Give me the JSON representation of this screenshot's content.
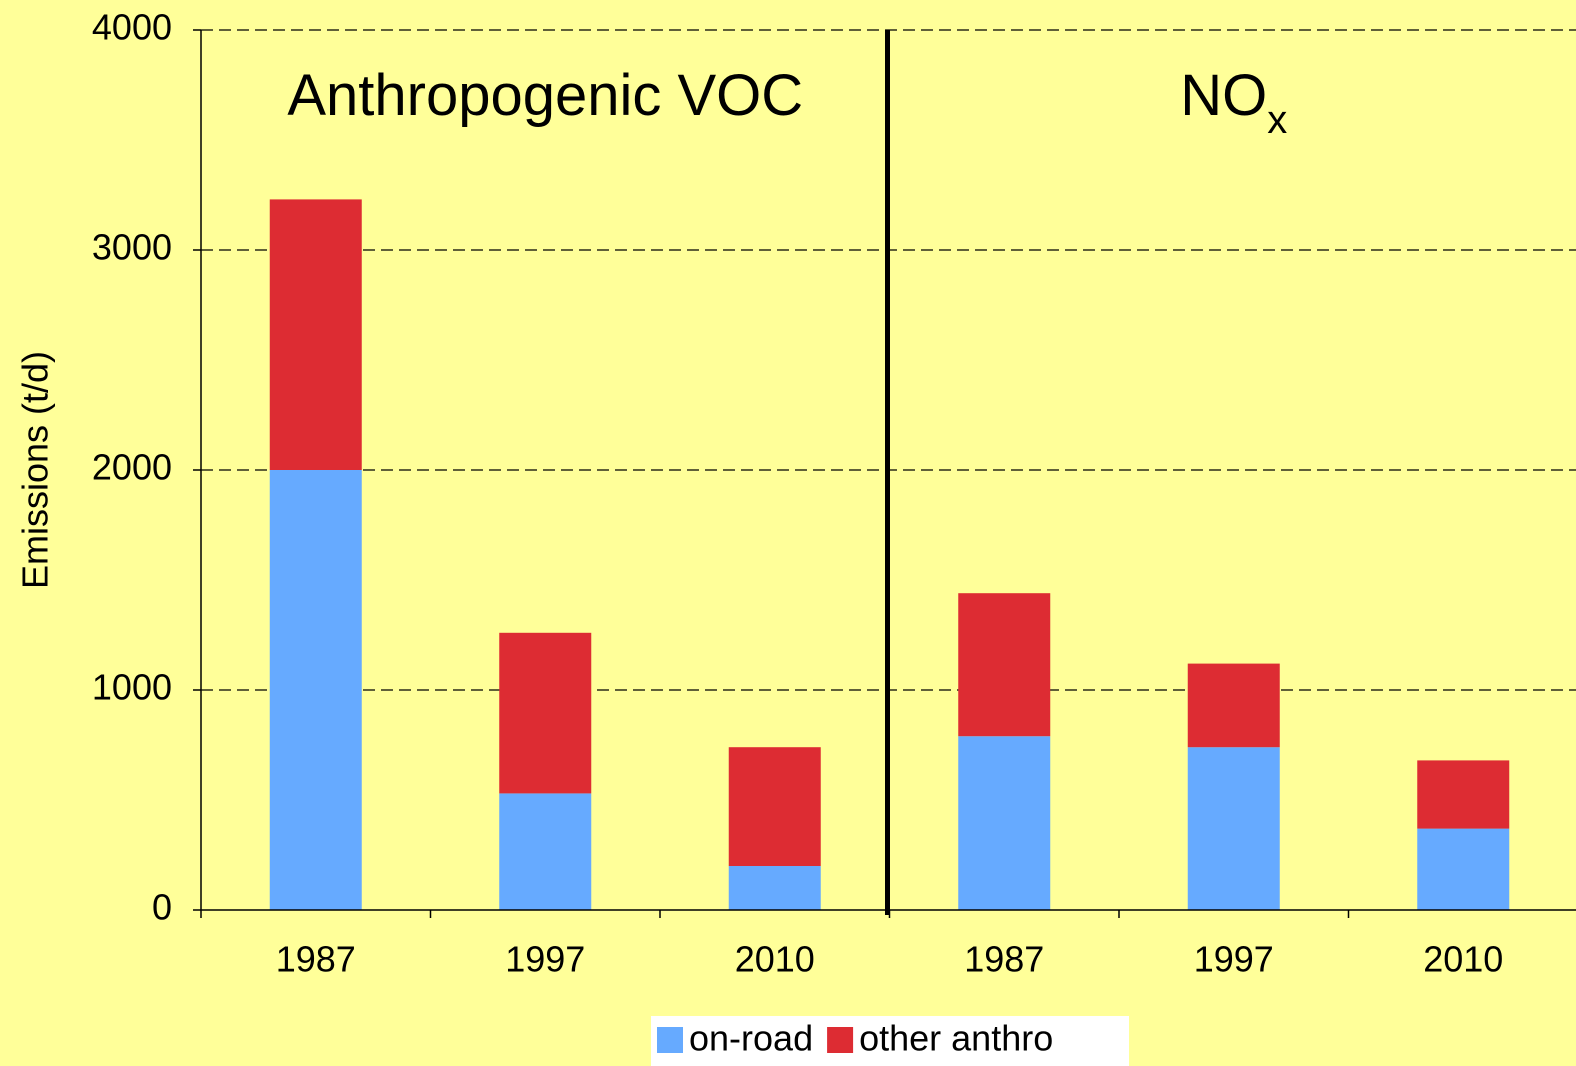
{
  "chart_data": {
    "type": "stacked_bar",
    "y_label": "Emissions (t/d)",
    "categories": [
      "1987",
      "1997",
      "2010",
      "1987",
      "1997",
      "2010"
    ],
    "groups": [
      {
        "label": "Anthropogenic VOC"
      },
      {
        "label": "NO",
        "subscript": "x"
      }
    ],
    "series": [
      {
        "name": "on-road",
        "color": "#66aaff",
        "values": [
          2000,
          530,
          200,
          790,
          740,
          370
        ]
      },
      {
        "name": "other anthro",
        "color": "#dd2c33",
        "values": [
          1230,
          730,
          540,
          650,
          380,
          310
        ]
      }
    ],
    "ylim": [
      0,
      4000
    ],
    "yticks": [
      0,
      1000,
      2000,
      3000,
      4000
    ],
    "grid": true
  }
}
